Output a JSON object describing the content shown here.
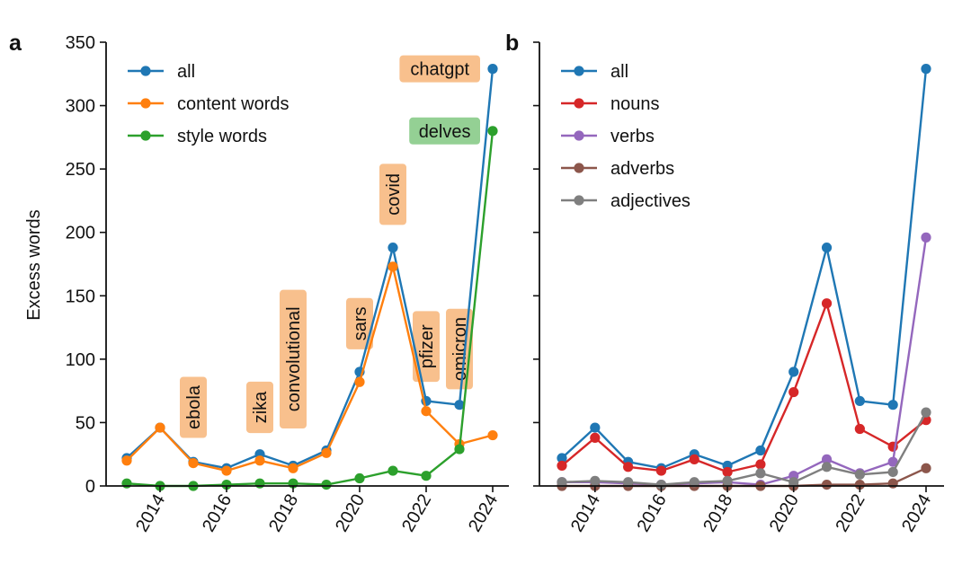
{
  "figure": {
    "ylabel": "Excess words",
    "x_ticks": [
      2014,
      2016,
      2018,
      2020,
      2022,
      2024
    ],
    "y_ticks": [
      0,
      50,
      100,
      150,
      200,
      250,
      300,
      350
    ]
  },
  "chart_data": [
    {
      "panel_label": "a",
      "type": "line",
      "x": [
        2013,
        2014,
        2015,
        2016,
        2017,
        2018,
        2019,
        2020,
        2021,
        2022,
        2023,
        2024
      ],
      "ylim": [
        0,
        350
      ],
      "xlabel": "",
      "ylabel": "Excess words",
      "legend_position": "top-left",
      "grid": false,
      "series": [
        {
          "name": "all",
          "color": "#1f77b4",
          "values": [
            22,
            46,
            19,
            14,
            25,
            16,
            28,
            90,
            188,
            67,
            64,
            329
          ]
        },
        {
          "name": "content words",
          "color": "#ff7f0e",
          "values": [
            20,
            46,
            18,
            12,
            20,
            14,
            26,
            82,
            173,
            59,
            33,
            40
          ]
        },
        {
          "name": "style words",
          "color": "#2ca02c",
          "values": [
            2,
            0,
            0,
            1,
            2,
            2,
            1,
            6,
            12,
            8,
            29,
            280
          ]
        }
      ],
      "annotations": [
        {
          "text": "ebola",
          "year": 2015,
          "value": 62,
          "rotated": true,
          "style": "content"
        },
        {
          "text": "zika",
          "year": 2017,
          "value": 62,
          "rotated": true,
          "style": "content"
        },
        {
          "text": "convolutional",
          "year": 2018,
          "value": 100,
          "rotated": true,
          "style": "content"
        },
        {
          "text": "sars",
          "year": 2020,
          "value": 128,
          "rotated": true,
          "style": "content"
        },
        {
          "text": "covid",
          "year": 2021,
          "value": 230,
          "rotated": true,
          "style": "content"
        },
        {
          "text": "pfizer",
          "year": 2022,
          "value": 110,
          "rotated": true,
          "style": "content"
        },
        {
          "text": "omicron",
          "year": 2023,
          "value": 108,
          "rotated": true,
          "style": "content"
        },
        {
          "text": "chatgpt",
          "year": 2024,
          "value": 329,
          "rotated": false,
          "style": "content"
        },
        {
          "text": "delves",
          "year": 2024,
          "value": 280,
          "rotated": false,
          "style": "style"
        }
      ]
    },
    {
      "panel_label": "b",
      "type": "line",
      "x": [
        2013,
        2014,
        2015,
        2016,
        2017,
        2018,
        2019,
        2020,
        2021,
        2022,
        2023,
        2024
      ],
      "ylim": [
        0,
        350
      ],
      "xlabel": "",
      "ylabel": "",
      "legend_position": "top-left",
      "grid": false,
      "series": [
        {
          "name": "all",
          "color": "#1f77b4",
          "values": [
            22,
            46,
            19,
            14,
            25,
            16,
            28,
            90,
            188,
            67,
            64,
            329
          ]
        },
        {
          "name": "nouns",
          "color": "#d62728",
          "values": [
            16,
            38,
            15,
            12,
            21,
            11,
            17,
            74,
            144,
            45,
            31,
            52
          ]
        },
        {
          "name": "verbs",
          "color": "#9467bd",
          "values": [
            3,
            3,
            2,
            1,
            2,
            3,
            1,
            8,
            21,
            10,
            19,
            196
          ]
        },
        {
          "name": "adverbs",
          "color": "#8c564b",
          "values": [
            0,
            0,
            0,
            0,
            0,
            0,
            0,
            0,
            1,
            1,
            2,
            14
          ]
        },
        {
          "name": "adjectives",
          "color": "#7f7f7f",
          "values": [
            3,
            4,
            3,
            1,
            3,
            4,
            10,
            3,
            15,
            9,
            11,
            58
          ]
        }
      ]
    }
  ],
  "colors": {
    "content_box": "#f8c08d",
    "style_box": "#94d094",
    "axis": "#111111"
  }
}
